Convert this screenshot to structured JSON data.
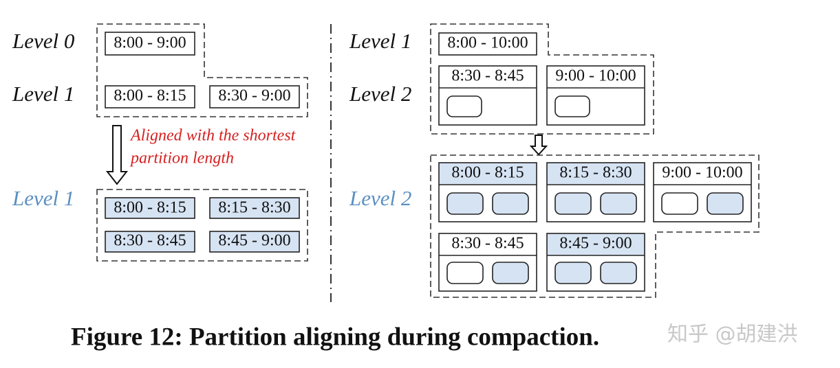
{
  "left": {
    "levels": [
      "Level 0",
      "Level 1",
      "Level 1"
    ],
    "partitions": [
      "8:00 - 9:00",
      "8:00 - 8:15",
      "8:30 - 9:00",
      "8:00 - 8:15",
      "8:15 - 8:30",
      "8:30 - 8:45",
      "8:45 - 9:00"
    ],
    "annotation": [
      "Aligned with the shortest",
      "partition length"
    ]
  },
  "right": {
    "levels": [
      "Level 1",
      "Level 2",
      "Level 2"
    ],
    "partitions": [
      "8:00 - 10:00",
      "8:30 - 8:45",
      "9:00 - 10:00",
      "8:00 - 8:15",
      "8:15 - 8:30",
      "9:00 - 10:00",
      "8:30 - 8:45",
      "8:45 - 9:00"
    ]
  },
  "caption": "Figure 12:  Partition aligning during compaction.",
  "watermark": "知乎 @胡建洪"
}
